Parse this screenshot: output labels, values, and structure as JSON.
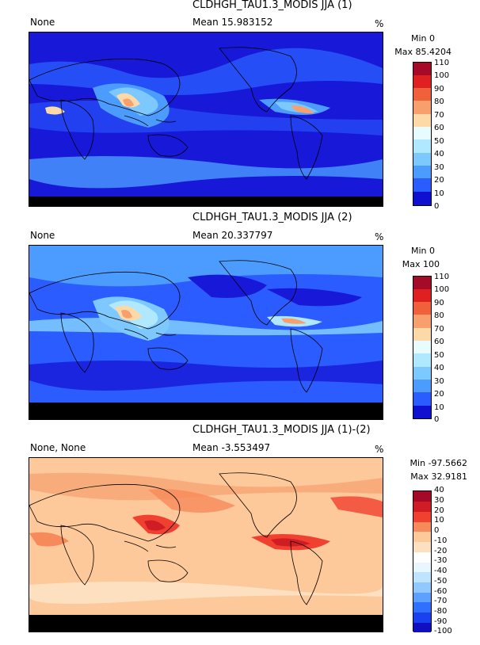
{
  "panels": [
    {
      "title": "CLDHGH_TAU1.3_MODIS JJA (1)",
      "left_label": "None",
      "mean_label": "Mean 15.983152",
      "unit": "%",
      "min_label": "Min 0",
      "max_label": "Max 85.4204",
      "colorbar": {
        "ticks": [
          "110",
          "100",
          "90",
          "80",
          "70",
          "60",
          "50",
          "40",
          "30",
          "20",
          "10",
          "0"
        ],
        "colors": [
          "#a50a28",
          "#e02020",
          "#f0603a",
          "#f7a06e",
          "#fdd9a8",
          "#e8fbff",
          "#b0e8ff",
          "#7cc8ff",
          "#4c9cff",
          "#2a5cff",
          "#1010d0"
        ]
      },
      "map_style": "cloud1"
    },
    {
      "title": "CLDHGH_TAU1.3_MODIS JJA (2)",
      "left_label": "None",
      "mean_label": "Mean 20.337797",
      "unit": "%",
      "min_label": "Min 0",
      "max_label": "Max 100",
      "colorbar": {
        "ticks": [
          "110",
          "100",
          "90",
          "80",
          "70",
          "60",
          "50",
          "40",
          "30",
          "20",
          "10",
          "0"
        ],
        "colors": [
          "#a50a28",
          "#e02020",
          "#f0603a",
          "#f7a06e",
          "#fdd9a8",
          "#e8fbff",
          "#b0e8ff",
          "#7cc8ff",
          "#4c9cff",
          "#2a5cff",
          "#1010d0"
        ]
      },
      "map_style": "cloud2"
    },
    {
      "title": "CLDHGH_TAU1.3_MODIS JJA (1)-(2)",
      "left_label": "None, None",
      "mean_label": "Mean -3.553497",
      "unit": "%",
      "min_label": "Min -97.5662",
      "max_label": "Max 32.9181",
      "colorbar": {
        "ticks": [
          "40",
          "30",
          "20",
          "10",
          "0",
          "-10",
          "-20",
          "-30",
          "-40",
          "-50",
          "-60",
          "-70",
          "-80",
          "-90",
          "-100"
        ],
        "colors": [
          "#a50a28",
          "#d01c24",
          "#f04030",
          "#f78a5a",
          "#fdc89a",
          "#fde0c0",
          "#ffffff",
          "#e8f6ff",
          "#c0e4ff",
          "#90c8ff",
          "#5ea0ff",
          "#3070ff",
          "#1a40f0",
          "#1010c0"
        ]
      },
      "map_style": "diff"
    }
  ]
}
